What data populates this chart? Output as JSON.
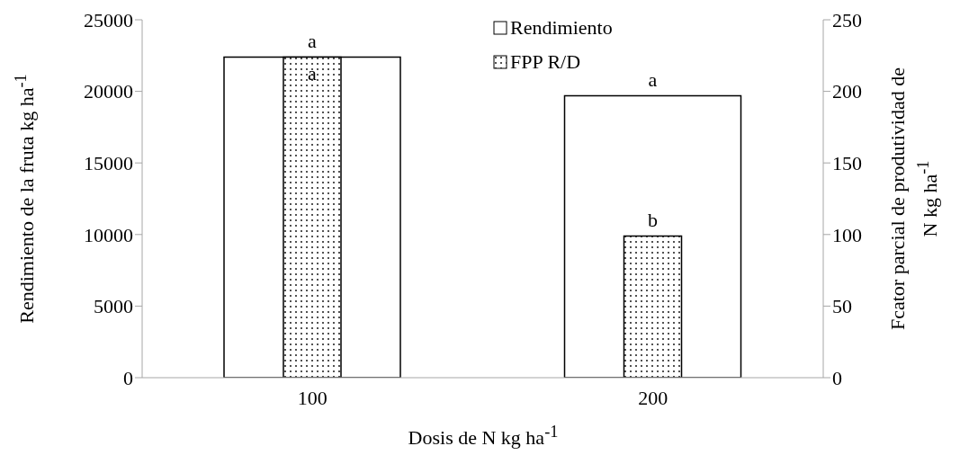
{
  "chart_data": {
    "type": "bar",
    "xlabel": "Dosis de N kg ha$^{-1}$",
    "ylabel": "Rendimiento de la fruta kg ha$^{-1}$",
    "y2label": "Fcator parcial de produtividad de N kg ha$^{-1}$",
    "categories": [
      "100",
      "200"
    ],
    "series": [
      {
        "name": "Rendimiento",
        "color": "#ffffff",
        "values": [
          22400,
          19700
        ],
        "value_labels": [
          "a",
          "a"
        ]
      },
      {
        "name": "FPP R/D",
        "color": "#000000",
        "values": [
          224,
          99
        ],
        "axis": "y2",
        "value_labels": [
          "a",
          "b"
        ]
      }
    ],
    "ylim": [
      0,
      25000
    ],
    "yticks": [
      0,
      5000,
      10000,
      15000,
      20000,
      25000
    ],
    "y2lim": [
      0,
      250
    ],
    "y2ticks": [
      0,
      50,
      100,
      150,
      200,
      250
    ],
    "legend": "top"
  }
}
